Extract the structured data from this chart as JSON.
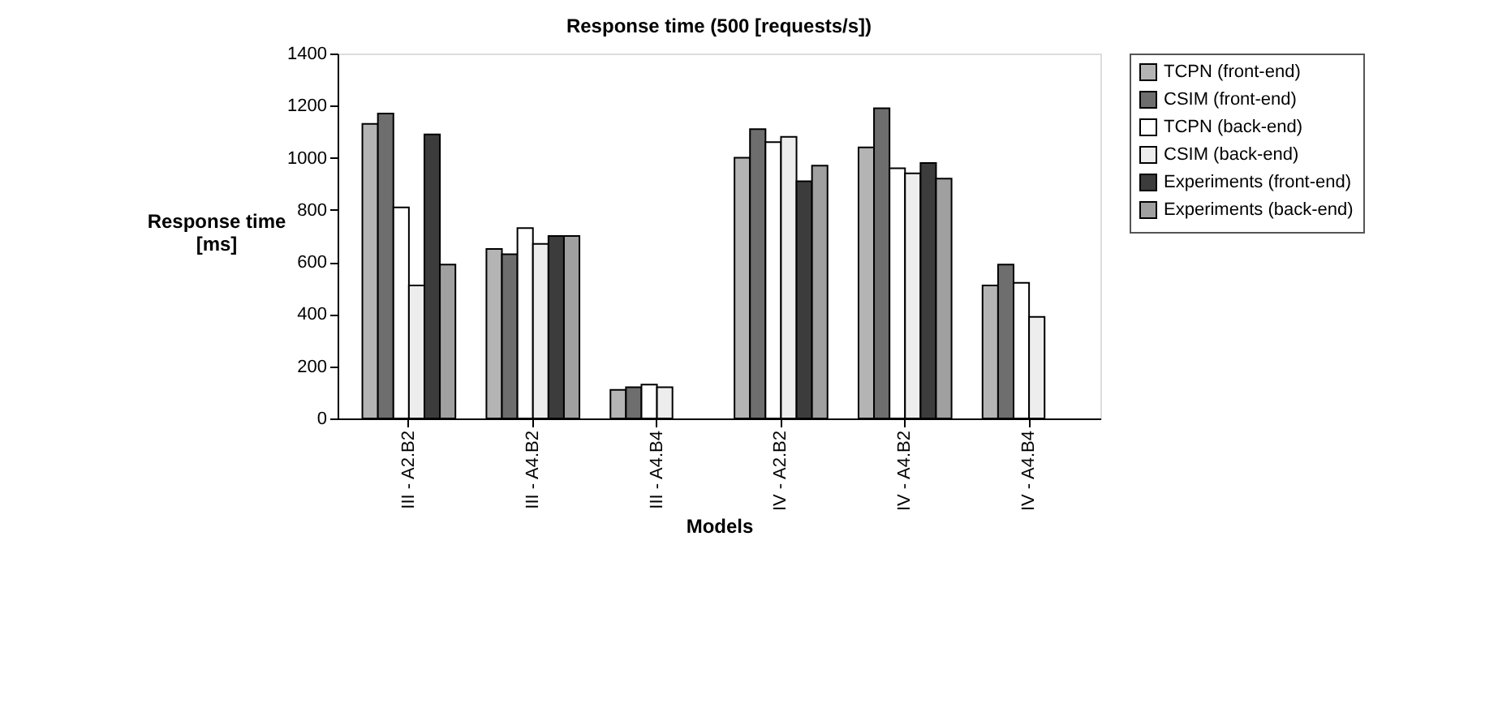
{
  "chart_data": {
    "type": "bar",
    "title": "Response time (500 [requests/s])",
    "xlabel": "Models",
    "ylabel": "Response time [ms]",
    "categories": [
      "III - A2.B2",
      "III - A4.B2",
      "III - A4.B4",
      "IV - A2.B2",
      "IV - A4.B2",
      "IV - A4.B4"
    ],
    "series": [
      {
        "name": "TCPN (front-end)",
        "color": "#b4b4b4",
        "values": [
          1130,
          650,
          110,
          1000,
          1040,
          510
        ]
      },
      {
        "name": "CSIM (front-end)",
        "color": "#6e6e6e",
        "values": [
          1170,
          630,
          120,
          1110,
          1190,
          590
        ]
      },
      {
        "name": "TCPN (back-end)",
        "color": "#ffffff",
        "values": [
          810,
          730,
          130,
          1060,
          960,
          520
        ]
      },
      {
        "name": "CSIM (back-end)",
        "color": "#ededed",
        "values": [
          510,
          670,
          120,
          1080,
          940,
          390
        ]
      },
      {
        "name": "Experiments (front-end)",
        "color": "#3c3c3c",
        "values": [
          1090,
          700,
          null,
          910,
          980,
          null
        ]
      },
      {
        "name": "Experiments (back-end)",
        "color": "#a0a0a0",
        "values": [
          590,
          700,
          null,
          970,
          920,
          null
        ]
      }
    ],
    "ylim": [
      0,
      1400
    ],
    "yticks": [
      0,
      200,
      400,
      600,
      800,
      1000,
      1200,
      1400
    ],
    "grid": false,
    "legend": "right"
  }
}
